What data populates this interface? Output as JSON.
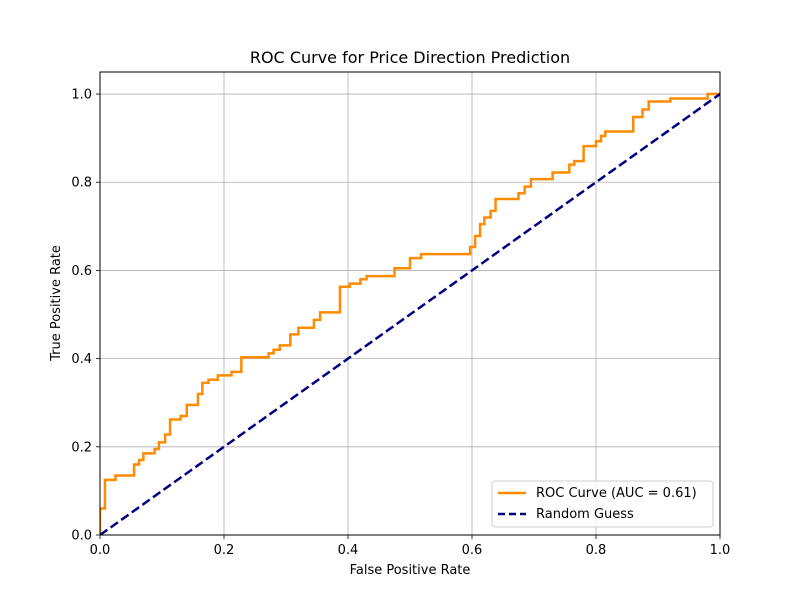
{
  "chart_data": {
    "type": "line",
    "title": "ROC Curve for Price Direction Prediction",
    "xlabel": "False Positive Rate",
    "ylabel": "True Positive Rate",
    "xlim": [
      0.0,
      1.0
    ],
    "ylim": [
      0.0,
      1.05
    ],
    "x_ticks": [
      "0.0",
      "0.2",
      "0.4",
      "0.6",
      "0.8",
      "1.0"
    ],
    "y_ticks": [
      "0.0",
      "0.2",
      "0.4",
      "0.6",
      "0.8",
      "1.0"
    ],
    "grid": true,
    "legend_position": "lower-right",
    "series": [
      {
        "name": "ROC Curve (AUC = 0.61)",
        "color": "#ff8c00",
        "style": "solid",
        "points": [
          [
            0.0,
            0.0
          ],
          [
            0.0,
            0.06
          ],
          [
            0.008,
            0.06
          ],
          [
            0.008,
            0.125
          ],
          [
            0.025,
            0.125
          ],
          [
            0.025,
            0.135
          ],
          [
            0.055,
            0.135
          ],
          [
            0.055,
            0.16
          ],
          [
            0.063,
            0.16
          ],
          [
            0.063,
            0.17
          ],
          [
            0.07,
            0.17
          ],
          [
            0.07,
            0.185
          ],
          [
            0.088,
            0.185
          ],
          [
            0.088,
            0.195
          ],
          [
            0.095,
            0.195
          ],
          [
            0.095,
            0.21
          ],
          [
            0.105,
            0.21
          ],
          [
            0.105,
            0.228
          ],
          [
            0.113,
            0.228
          ],
          [
            0.113,
            0.262
          ],
          [
            0.13,
            0.262
          ],
          [
            0.13,
            0.27
          ],
          [
            0.14,
            0.27
          ],
          [
            0.14,
            0.295
          ],
          [
            0.158,
            0.295
          ],
          [
            0.158,
            0.32
          ],
          [
            0.165,
            0.32
          ],
          [
            0.165,
            0.345
          ],
          [
            0.175,
            0.345
          ],
          [
            0.175,
            0.352
          ],
          [
            0.19,
            0.352
          ],
          [
            0.19,
            0.362
          ],
          [
            0.212,
            0.362
          ],
          [
            0.212,
            0.37
          ],
          [
            0.228,
            0.37
          ],
          [
            0.228,
            0.403
          ],
          [
            0.272,
            0.403
          ],
          [
            0.272,
            0.412
          ],
          [
            0.28,
            0.412
          ],
          [
            0.28,
            0.42
          ],
          [
            0.29,
            0.42
          ],
          [
            0.29,
            0.43
          ],
          [
            0.307,
            0.43
          ],
          [
            0.307,
            0.455
          ],
          [
            0.32,
            0.455
          ],
          [
            0.32,
            0.47
          ],
          [
            0.345,
            0.47
          ],
          [
            0.345,
            0.488
          ],
          [
            0.355,
            0.488
          ],
          [
            0.355,
            0.505
          ],
          [
            0.387,
            0.505
          ],
          [
            0.387,
            0.563
          ],
          [
            0.403,
            0.563
          ],
          [
            0.403,
            0.57
          ],
          [
            0.42,
            0.57
          ],
          [
            0.42,
            0.58
          ],
          [
            0.43,
            0.58
          ],
          [
            0.43,
            0.587
          ],
          [
            0.475,
            0.587
          ],
          [
            0.475,
            0.605
          ],
          [
            0.5,
            0.605
          ],
          [
            0.5,
            0.628
          ],
          [
            0.518,
            0.628
          ],
          [
            0.518,
            0.637
          ],
          [
            0.597,
            0.637
          ],
          [
            0.597,
            0.653
          ],
          [
            0.605,
            0.653
          ],
          [
            0.605,
            0.678
          ],
          [
            0.613,
            0.678
          ],
          [
            0.613,
            0.705
          ],
          [
            0.62,
            0.705
          ],
          [
            0.62,
            0.72
          ],
          [
            0.63,
            0.72
          ],
          [
            0.63,
            0.735
          ],
          [
            0.638,
            0.735
          ],
          [
            0.638,
            0.762
          ],
          [
            0.675,
            0.762
          ],
          [
            0.675,
            0.775
          ],
          [
            0.685,
            0.775
          ],
          [
            0.685,
            0.79
          ],
          [
            0.695,
            0.79
          ],
          [
            0.695,
            0.807
          ],
          [
            0.73,
            0.807
          ],
          [
            0.73,
            0.822
          ],
          [
            0.757,
            0.822
          ],
          [
            0.757,
            0.84
          ],
          [
            0.765,
            0.84
          ],
          [
            0.765,
            0.848
          ],
          [
            0.78,
            0.848
          ],
          [
            0.78,
            0.882
          ],
          [
            0.8,
            0.882
          ],
          [
            0.8,
            0.893
          ],
          [
            0.808,
            0.893
          ],
          [
            0.808,
            0.905
          ],
          [
            0.815,
            0.905
          ],
          [
            0.815,
            0.915
          ],
          [
            0.86,
            0.915
          ],
          [
            0.86,
            0.948
          ],
          [
            0.875,
            0.948
          ],
          [
            0.875,
            0.965
          ],
          [
            0.885,
            0.965
          ],
          [
            0.885,
            0.983
          ],
          [
            0.92,
            0.983
          ],
          [
            0.92,
            0.99
          ],
          [
            0.98,
            0.99
          ],
          [
            0.98,
            1.0
          ],
          [
            1.0,
            1.0
          ]
        ]
      },
      {
        "name": "Random Guess",
        "color": "#000080",
        "style": "dashed",
        "points": [
          [
            0.0,
            0.0
          ],
          [
            1.0,
            1.0
          ]
        ]
      }
    ]
  }
}
